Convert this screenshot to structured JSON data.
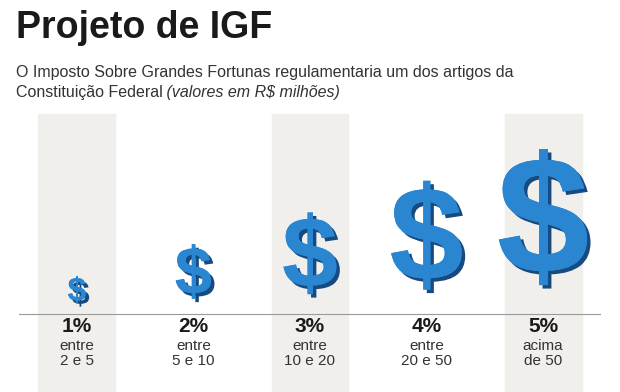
{
  "chart_data": {
    "type": "pictograph",
    "title": "Projeto de IGF",
    "subtitle": "O Imposto Sobre Grandes Fortunas regulamentaria um dos artigos da\nConstituição Federal",
    "annotation": "(valores em R$ milhões)",
    "categories": [
      "entre\n2 e 5",
      "entre\n5 e 10",
      "entre\n10 e 20",
      "entre\n20 e 50",
      "acima\nde 50"
    ],
    "values": [
      1,
      2,
      3,
      4,
      5
    ],
    "value_labels": [
      "1%",
      "2%",
      "3%",
      "4%",
      "5%"
    ],
    "data_labels": true,
    "marker": "$",
    "color": "#2a86d0",
    "tick_labels": false
  }
}
